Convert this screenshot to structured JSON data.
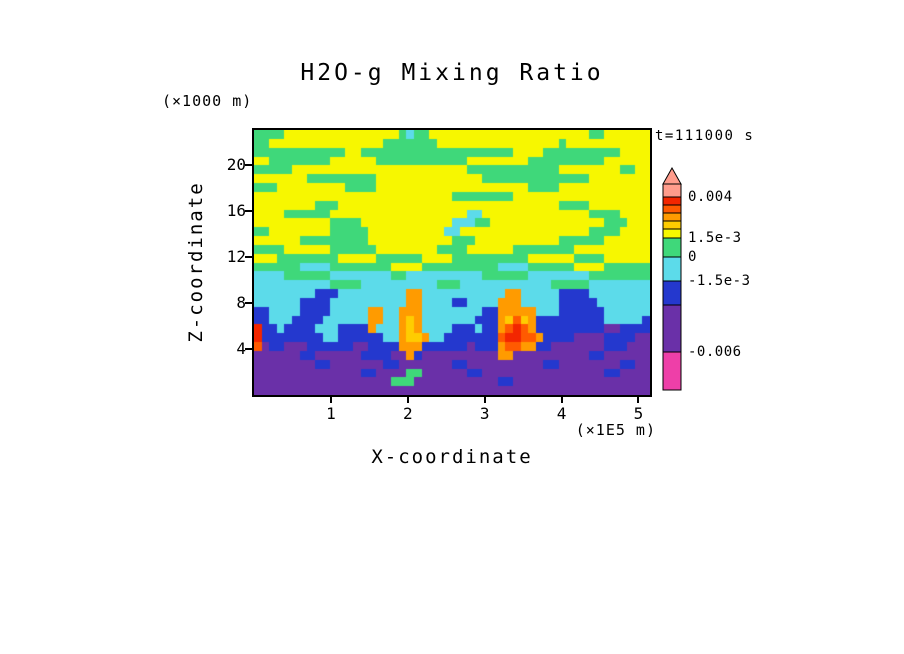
{
  "title": "H2O-g Mixing Ratio",
  "timestamp": "t=111000 s",
  "axes": {
    "x": {
      "label": "X-coordinate",
      "units": "(×1E5 m)",
      "ticks": [
        "1",
        "2",
        "3",
        "4",
        "5"
      ]
    },
    "z": {
      "label": "Z-coordinate",
      "units": "(×1000 m)",
      "ticks": [
        "4",
        "8",
        "12",
        "16",
        "20"
      ]
    }
  },
  "chart_data": {
    "type": "heatmap",
    "title": "H2O-g Mixing Ratio",
    "xlabel": "X-coordinate",
    "zlabel": "Z-coordinate",
    "x_units": "(×1E5 m)",
    "z_units": "(×1000 m)",
    "annotations": [
      "t=111000 s"
    ],
    "legend_position": "right",
    "x_range_1e5_m": [
      0,
      5.15
    ],
    "z_range_1000_m": [
      0,
      23
    ],
    "levels": [
      -0.006,
      -0.003,
      -0.0015,
      0,
      0.0015,
      0.002,
      0.0025,
      0.003,
      0.0035,
      0.004
    ],
    "bands": [
      {
        "key": "s",
        "color": "#FF9C8C",
        "range": "> 0.004"
      },
      {
        "key": "R",
        "color": "#F32600",
        "range": "0.0035 to 0.004"
      },
      {
        "key": "r",
        "color": "#FF5A00",
        "range": "0.003 to 0.0035"
      },
      {
        "key": "o",
        "color": "#FF9B00",
        "range": "0.0025 to 0.003"
      },
      {
        "key": "d",
        "color": "#FFCC00",
        "range": "0.002 to 0.0025"
      },
      {
        "key": "y",
        "color": "#F7F700",
        "range": "0.0015 to 0.002"
      },
      {
        "key": "g",
        "color": "#3FD87A",
        "range": "0 to 0.0015"
      },
      {
        "key": "c",
        "color": "#5CDBEA",
        "range": "-0.0015 to 0"
      },
      {
        "key": "b",
        "color": "#2438CE",
        "range": "-0.003 to -0.0015"
      },
      {
        "key": "p",
        "color": "#6A30A8",
        "range": "-0.006 to -0.003"
      },
      {
        "key": "m",
        "color": "#EE3FA8",
        "range": "< -0.006"
      }
    ],
    "colorbar": {
      "tip_color": "s",
      "tip_height": 16,
      "segments": [
        [
          "s",
          13
        ],
        [
          "R",
          8
        ],
        [
          "r",
          8
        ],
        [
          "o",
          8
        ],
        [
          "d",
          8
        ],
        [
          "y",
          9
        ],
        [
          "g",
          19
        ],
        [
          "c",
          24
        ],
        [
          "b",
          24
        ],
        [
          "p",
          47
        ],
        [
          "m",
          38
        ]
      ],
      "labels": [
        {
          "text": "0.004",
          "at": 13
        },
        {
          "text": "1.5e-3",
          "at": 54
        },
        {
          "text": "0",
          "at": 73
        },
        {
          "text": "-1.5e-3",
          "at": 97
        },
        {
          "text": "-0.006",
          "at": 168
        }
      ]
    },
    "grid_rows": [
      [
        "gggg",
        "yyyy",
        "yyyy",
        "yyyy",
        "yyyg",
        "cggy",
        "yyyy",
        "yyyy",
        "yyyy",
        "yyyy",
        "yyyy",
        "ggyy",
        "yyyy"
      ],
      [
        "ggyy",
        "yyyy",
        "yyyy",
        "yyyy",
        "yggg",
        "gggg",
        "yyyy",
        "yyyy",
        "yyyy",
        "yyyy",
        "gyyy",
        "yyyy",
        "yyyy"
      ],
      [
        "gggg",
        "gggg",
        "gggg",
        "yygg",
        "gggg",
        "gggg",
        "gggg",
        "gggg",
        "ggyy",
        "yygg",
        "gggg",
        "gggg",
        "yyyy"
      ],
      [
        "yygg",
        "gggg",
        "ggyy",
        "yyyy",
        "gggg",
        "gggg",
        "gggg",
        "yyyy",
        "yyyy",
        "gggg",
        "gggg",
        "ggyy",
        "yyyy"
      ],
      [
        "gggg",
        "gyyy",
        "yyyy",
        "yyyy",
        "yyyy",
        "yyyy",
        "yyyy",
        "gggg",
        "gggg",
        "gggg",
        "yyyy",
        "yyyy",
        "ggyy"
      ],
      [
        "yyyy",
        "yyyg",
        "gggg",
        "gggg",
        "yyyy",
        "yyyy",
        "yyyy",
        "yygg",
        "gggg",
        "gggg",
        "gggg",
        "yyyy",
        "yyyy"
      ],
      [
        "gggy",
        "yyyy",
        "yyyy",
        "gggg",
        "yyyy",
        "yyyy",
        "yyyy",
        "yyyy",
        "yyyy",
        "gggg",
        "yyyy",
        "yyyy",
        "yyyy"
      ],
      [
        "yyyy",
        "yyyy",
        "yyyy",
        "yyyy",
        "yyyy",
        "yyyy",
        "yygg",
        "gggg",
        "ggyy",
        "yyyy",
        "yyyy",
        "yyyy",
        "yyyy"
      ],
      [
        "yyyy",
        "yyyy",
        "gggy",
        "yyyy",
        "yyyy",
        "yyyy",
        "yyyy",
        "yyyy",
        "yyyy",
        "yyyy",
        "gggg",
        "yyyy",
        "yyyy"
      ],
      [
        "yyyy",
        "gggg",
        "ggyy",
        "yyyy",
        "yyyy",
        "yyyy",
        "yyyy",
        "ccyy",
        "yyyy",
        "yyyy",
        "yyyy",
        "gggg",
        "yyyy"
      ],
      [
        "yyyy",
        "yyyy",
        "yygg",
        "ggyy",
        "yyyy",
        "yyyy",
        "yycc",
        "cggy",
        "yyyy",
        "yyyy",
        "yyyy",
        "yygg",
        "gyyy"
      ],
      [
        "ggyy",
        "yyyy",
        "yygg",
        "gggy",
        "yyyy",
        "yyyy",
        "yccy",
        "yyyy",
        "yyyy",
        "yyyy",
        "yyyy",
        "gggg",
        "yyyy"
      ],
      [
        "yyyy",
        "yygg",
        "gggg",
        "gggy",
        "yyyy",
        "yyyy",
        "yygg",
        "gyyy",
        "yyyy",
        "yyyy",
        "gggg",
        "ggyy",
        "yyyy"
      ],
      [
        "gggg",
        "yyyy",
        "yygg",
        "gggg",
        "yyyy",
        "yyyy",
        "gggg",
        "yyyy",
        "yygg",
        "gggg",
        "ggyy",
        "yyyy",
        "yyyy"
      ],
      [
        "yyyg",
        "gggg",
        "gggy",
        "yyyy",
        "gggg",
        "ggyy",
        "yygg",
        "gggg",
        "gggg",
        "yyyy",
        "yygg",
        "ggyy",
        "yyyy"
      ],
      [
        "gggg",
        "ggcc",
        "ccgg",
        "gggg",
        "ggyy",
        "yygg",
        "gggg",
        "gggg",
        "cccc",
        "gggg",
        "ggyy",
        "yygg",
        "gggg"
      ],
      [
        "cccc",
        "gggg",
        "ggcc",
        "cccc",
        "ccgg",
        "cccc",
        "cccc",
        "ccgg",
        "gggg",
        "cccc",
        "cccc",
        "gggg",
        "gggg"
      ],
      [
        "cccc",
        "cccc",
        "ccgg",
        "ggcc",
        "cccc",
        "cccc",
        "gggc",
        "cccc",
        "cccc",
        "cccg",
        "gggg",
        "cccc",
        "cccc"
      ],
      [
        "cccc",
        "cccc",
        "bbbc",
        "cccc",
        "cccc",
        "oocc",
        "cccc",
        "cccc",
        "cooc",
        "cccc",
        "bbbb",
        "cccc",
        "cccc"
      ],
      [
        "cccc",
        "ccbb",
        "bbcc",
        "cccc",
        "cccc",
        "oocc",
        "ccbb",
        "cccc",
        "oooc",
        "cccc",
        "bbbb",
        "bccc",
        "cccc"
      ],
      [
        "bbcc",
        "ccbb",
        "bbcc",
        "ccco",
        "occo",
        "oocc",
        "cccc",
        "ccbb",
        "oooo",
        "occc",
        "bbbb",
        "bbcc",
        "cccc"
      ],
      [
        "bbcc",
        "cbbb",
        "bccc",
        "ccco",
        "occo",
        "docc",
        "cccc",
        "cbbb",
        "odrd",
        "obbb",
        "bbbb",
        "bbcc",
        "cccb"
      ],
      [
        "Rbbc",
        "bbbb",
        "cccb",
        "bbbo",
        "ccco",
        "docc",
        "ccbb",
        "bcbb",
        "orRr",
        "obbb",
        "bbbb",
        "bbpp",
        "bbbb"
      ],
      [
        "Rbbb",
        "bbbb",
        "bccb",
        "bbbb",
        "bcco",
        "ddoc",
        "cbbb",
        "bbbb",
        "rRRr",
        "robb",
        "bbpp",
        "ppbb",
        "bbpp"
      ],
      [
        "rpbb",
        "pppb",
        "bbbb",
        "bppb",
        "bbbo",
        "oobb",
        "bbbb",
        "pbbb",
        "orro",
        "obbp",
        "pppp",
        "ppbb",
        "bppp"
      ],
      [
        "pppp",
        "ppbb",
        "pppp",
        "ppbb",
        "bbpp",
        "obpp",
        "pppp",
        "pppp",
        "oopp",
        "pppp",
        "pppp",
        "bbpp",
        "pppp"
      ],
      [
        "pppp",
        "pppp",
        "bbpp",
        "pppp",
        "pbbp",
        "pppp",
        "ppbb",
        "pppp",
        "pppp",
        "ppbb",
        "pppp",
        "pppp",
        "bbpp"
      ],
      [
        "pppp",
        "pppp",
        "pppp",
        "ppbb",
        "pppp",
        "ggpp",
        "pppp",
        "bbpp",
        "pppp",
        "pppp",
        "pppp",
        "ppbb",
        "pppp"
      ],
      [
        "pppp",
        "pppp",
        "pppp",
        "pppp",
        "ppgg",
        "gppp",
        "pppp",
        "pppp",
        "bbpp",
        "pppp",
        "pppp",
        "pppp",
        "pppp"
      ],
      [
        "pppp",
        "pppp",
        "pppp",
        "pppp",
        "pppp",
        "pppp",
        "pppp",
        "pppp",
        "pppp",
        "pppp",
        "pppp",
        "pppp",
        "pppp"
      ]
    ]
  }
}
